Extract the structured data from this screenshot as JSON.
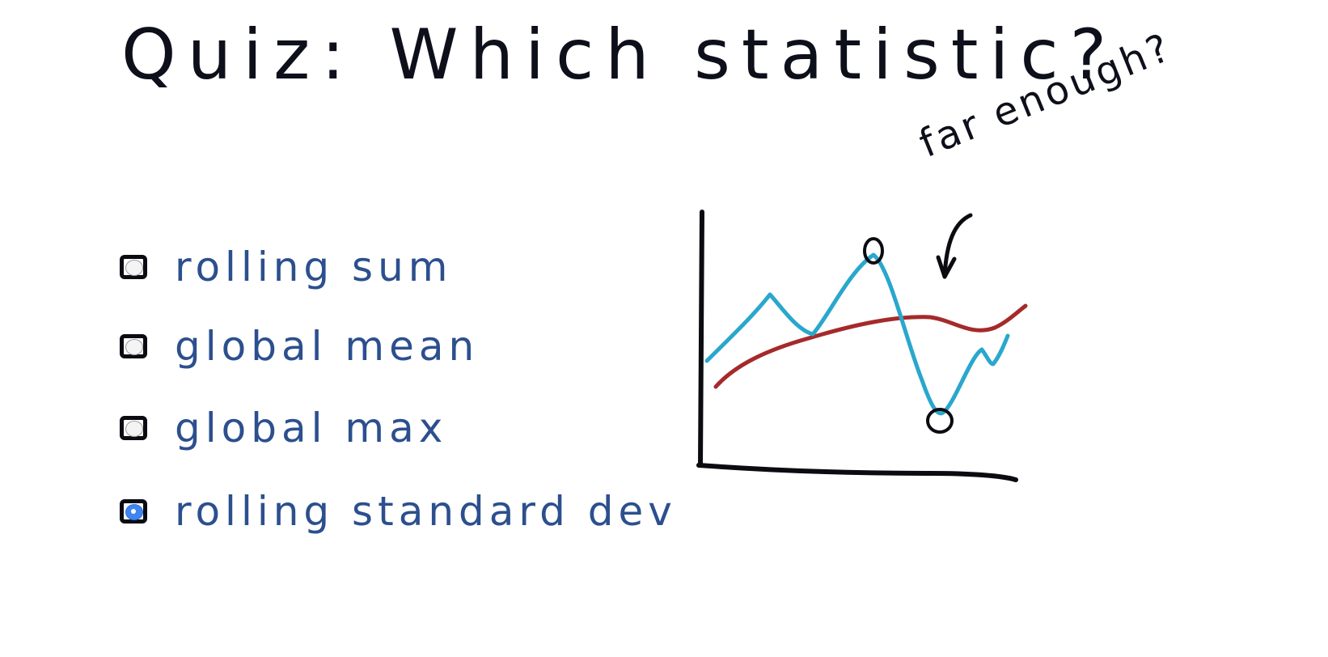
{
  "quiz": {
    "title": "Quiz: Which statistic?",
    "options": [
      {
        "label": "rolling sum",
        "selected": false
      },
      {
        "label": "global mean",
        "selected": false
      },
      {
        "label": "global max",
        "selected": false
      },
      {
        "label": "rolling standard dev",
        "selected": true
      }
    ]
  },
  "sketch": {
    "annotation": "far enough?",
    "colors": {
      "signal": "#2aa7cc",
      "mean": "#a52a2a",
      "axes": "#0b0b12"
    }
  }
}
